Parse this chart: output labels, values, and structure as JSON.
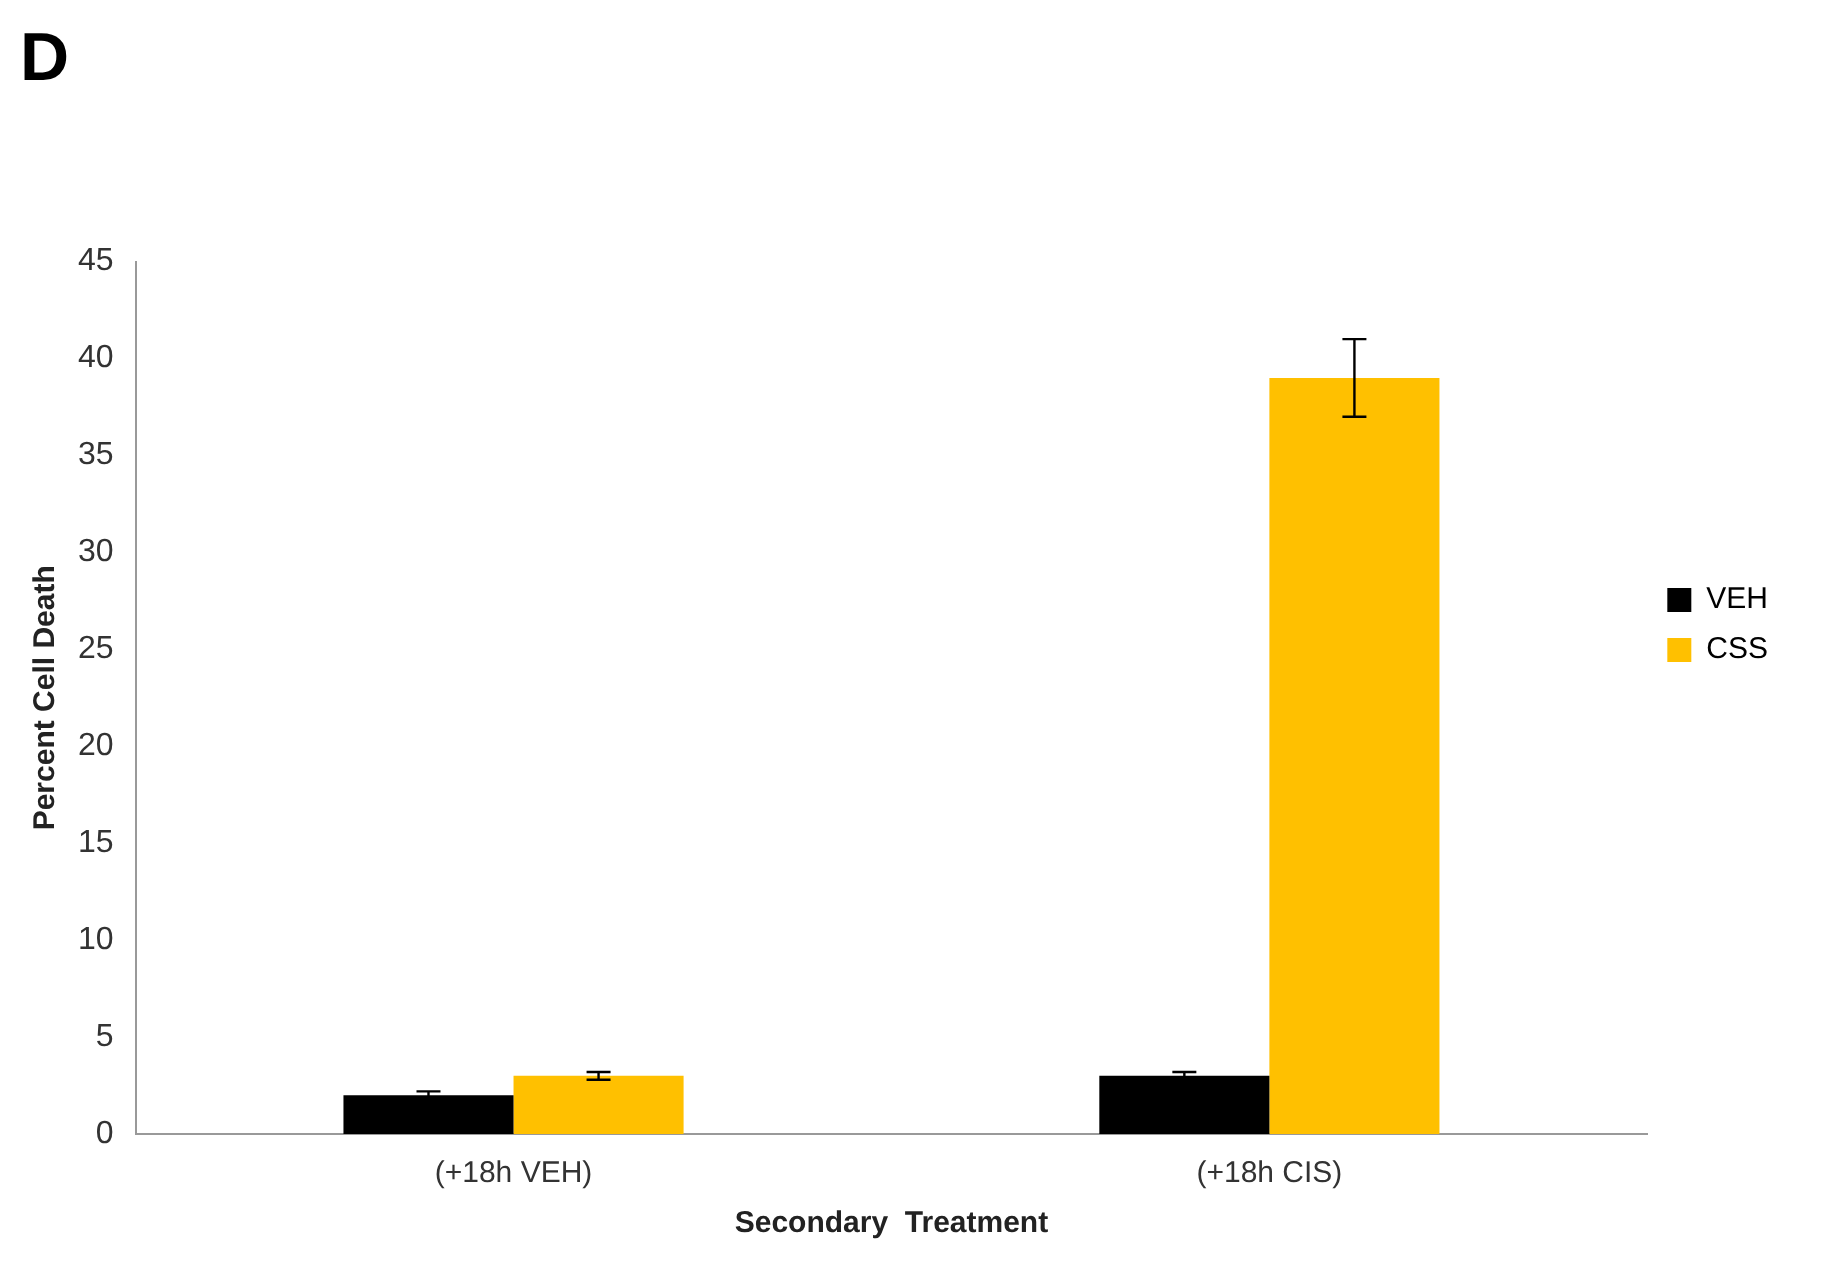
{
  "chart_data": {
    "type": "bar",
    "title": "D",
    "xlabel": "Secondary  Treatment",
    "ylabel": "Percent Cell Death",
    "categories": [
      "(+18h VEH)",
      "(+18h CIS)"
    ],
    "series": [
      {
        "name": "VEH",
        "color": "#000000",
        "values": [
          2,
          3
        ],
        "errors": [
          0.2,
          0.2
        ]
      },
      {
        "name": "CSS",
        "color": "#ffc000",
        "values": [
          3,
          39
        ],
        "errors": [
          0.2,
          2
        ]
      }
    ],
    "ylim": [
      0,
      45
    ],
    "yticks": [
      0,
      5,
      10,
      15,
      20,
      25,
      30,
      35,
      40,
      45
    ],
    "grid": false,
    "legend": "right"
  }
}
